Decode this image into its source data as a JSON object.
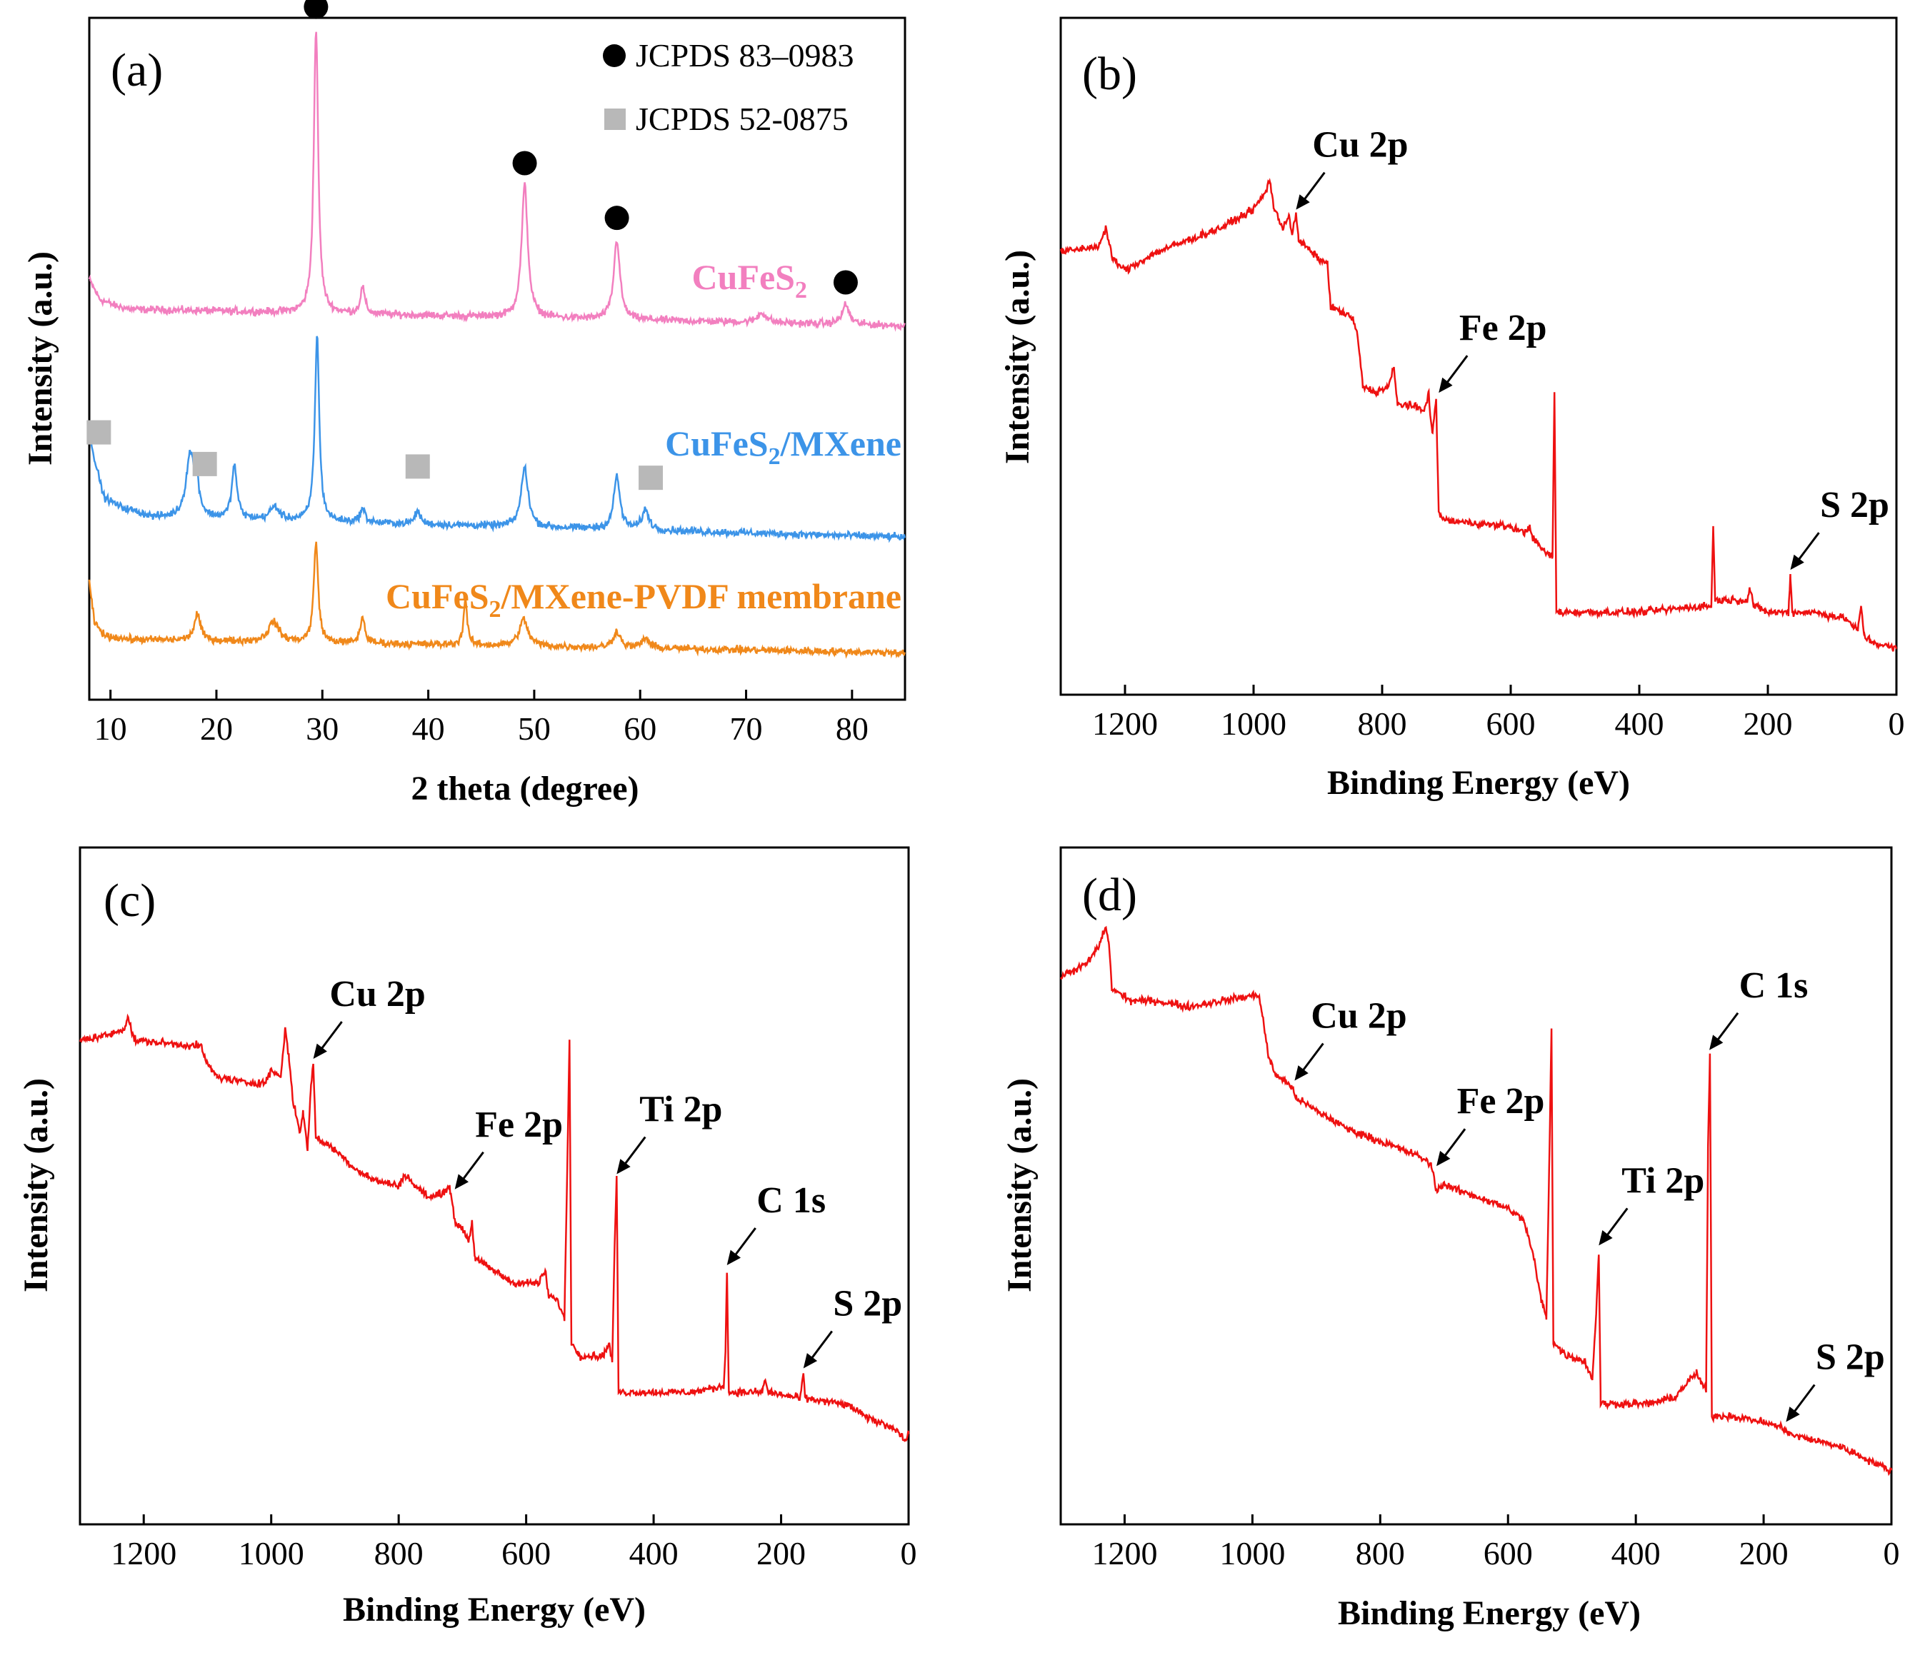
{
  "colors": {
    "cufes2": "#f27fbf",
    "cufes2_mxene": "#3c94e8",
    "membrane": "#f0881a",
    "xps": "#ee1111",
    "circle_marker": "#000000",
    "square_marker": "#b8b8b8"
  },
  "chart_data": [
    {
      "panel": "(a)",
      "type": "line",
      "xlabel": "2 theta (degree)",
      "ylabel": "Intensity (a.u.)",
      "xlim": [
        8,
        85
      ],
      "ylim": [
        0,
        100
      ],
      "xticks": [
        10,
        20,
        30,
        40,
        50,
        60,
        70,
        80
      ],
      "legend": [
        {
          "marker": "circle",
          "label": "JCPDS 83–0983"
        },
        {
          "marker": "square",
          "label": "JCPDS 52-0875"
        }
      ],
      "series": [
        {
          "name": "CuFeS",
          "subscript": "2",
          "suffix": "",
          "color_key": "cufes2",
          "baseline": 55,
          "start_points": [
            [
              8,
              62
            ],
            [
              9,
              59
            ],
            [
              10.5,
              58
            ],
            [
              12,
              57.5
            ]
          ],
          "peaks": [
            [
              29.4,
              43,
              0.25
            ],
            [
              33.8,
              4,
              0.25
            ],
            [
              49.1,
              20,
              0.35
            ],
            [
              57.8,
              12,
              0.35
            ],
            [
              71.5,
              1.5,
              0.5
            ],
            [
              79.4,
              3,
              0.4
            ]
          ],
          "circle_markers": [
            29.4,
            49.1,
            57.8,
            79.4
          ]
        },
        {
          "name": "CuFeS",
          "subscript": "2",
          "suffix": "/MXene",
          "color_key": "cufes2_mxene",
          "baseline": 23,
          "start_points": [
            [
              8,
              39
            ],
            [
              8.6,
              34
            ],
            [
              9.4,
              29
            ],
            [
              11,
              27.5
            ],
            [
              14,
              26
            ]
          ],
          "peaks": [
            [
              17.5,
              9,
              0.45
            ],
            [
              18.1,
              5,
              0.3
            ],
            [
              21.7,
              8,
              0.3
            ],
            [
              25.5,
              2,
              0.5
            ],
            [
              29.5,
              28,
              0.25
            ],
            [
              33.8,
              2,
              0.3
            ],
            [
              39,
              2,
              0.3
            ],
            [
              49.1,
              9,
              0.4
            ],
            [
              57.8,
              8,
              0.35
            ],
            [
              60.5,
              3,
              0.4
            ]
          ],
          "square_markers": [
            8.9,
            18.9,
            39,
            61
          ]
        },
        {
          "name": "CuFeS",
          "subscript": "2",
          "suffix": "/MXene-PVDF membrane",
          "color_key": "membrane",
          "baseline": 5.5,
          "start_points": [
            [
              8,
              16
            ],
            [
              8.5,
              10
            ],
            [
              9.5,
              8
            ],
            [
              12,
              7.5
            ]
          ],
          "peaks": [
            [
              18.2,
              4,
              0.35
            ],
            [
              25.4,
              3,
              0.6
            ],
            [
              29.4,
              15,
              0.25
            ],
            [
              33.8,
              4,
              0.25
            ],
            [
              43.5,
              7,
              0.2
            ],
            [
              49,
              4,
              0.5
            ],
            [
              57.8,
              2.5,
              0.4
            ],
            [
              60.5,
              1.5,
              0.4
            ]
          ]
        }
      ]
    },
    {
      "panel": "(b)",
      "type": "line",
      "xlabel": "Binding Energy (eV)",
      "ylabel": "Intensity (a.u.)",
      "xlim": [
        1300,
        0
      ],
      "ylim": [
        0,
        100
      ],
      "xticks": [
        1200,
        1000,
        800,
        600,
        400,
        200,
        0
      ],
      "points": [
        [
          1300,
          71
        ],
        [
          1240,
          72
        ],
        [
          1230,
          75
        ],
        [
          1220,
          70
        ],
        [
          1200,
          68
        ],
        [
          1150,
          71
        ],
        [
          1100,
          73
        ],
        [
          1050,
          75
        ],
        [
          1000,
          78
        ],
        [
          980,
          81
        ],
        [
          975,
          83
        ],
        [
          968,
          78
        ],
        [
          955,
          75
        ],
        [
          945,
          77
        ],
        [
          940,
          74
        ],
        [
          934,
          77
        ],
        [
          930,
          73
        ],
        [
          910,
          71
        ],
        [
          900,
          70
        ],
        [
          885,
          69
        ],
        [
          880,
          62
        ],
        [
          860,
          61
        ],
        [
          845,
          60
        ],
        [
          838,
          57
        ],
        [
          830,
          49
        ],
        [
          810,
          48
        ],
        [
          790,
          49
        ],
        [
          782,
          52
        ],
        [
          776,
          46
        ],
        [
          760,
          46
        ],
        [
          735,
          45
        ],
        [
          728,
          48
        ],
        [
          722,
          41
        ],
        [
          716,
          47
        ],
        [
          712,
          28
        ],
        [
          700,
          27
        ],
        [
          650,
          26.5
        ],
        [
          600,
          26
        ],
        [
          580,
          25
        ],
        [
          570,
          26
        ],
        [
          565,
          24
        ],
        [
          548,
          22
        ],
        [
          535,
          21
        ],
        [
          532,
          48
        ],
        [
          529,
          12
        ],
        [
          500,
          12
        ],
        [
          400,
          12
        ],
        [
          300,
          13
        ],
        [
          288,
          13
        ],
        [
          285,
          26
        ],
        [
          282,
          14
        ],
        [
          250,
          14
        ],
        [
          232,
          14
        ],
        [
          228,
          16
        ],
        [
          222,
          13
        ],
        [
          200,
          12
        ],
        [
          168,
          12
        ],
        [
          165,
          18
        ],
        [
          162,
          12
        ],
        [
          130,
          12
        ],
        [
          80,
          11
        ],
        [
          60,
          9
        ],
        [
          55,
          13
        ],
        [
          50,
          8
        ],
        [
          35,
          7
        ],
        [
          0,
          6
        ]
      ],
      "annotations": [
        {
          "label": "Cu 2p",
          "x": 934
        },
        {
          "label": "Fe 2p",
          "x": 712
        },
        {
          "label": "S 2p",
          "x": 165
        }
      ]
    },
    {
      "panel": "(c)",
      "type": "line",
      "xlabel": "Binding Energy (eV)",
      "ylabel": "Intensity (a.u.)",
      "xlim": [
        1300,
        0
      ],
      "ylim": [
        0,
        100
      ],
      "xticks": [
        1200,
        1000,
        800,
        600,
        400,
        200,
        0
      ],
      "points": [
        [
          1300,
          78
        ],
        [
          1250,
          79
        ],
        [
          1230,
          80
        ],
        [
          1225,
          82
        ],
        [
          1215,
          78
        ],
        [
          1110,
          77
        ],
        [
          1100,
          74
        ],
        [
          1085,
          72
        ],
        [
          1040,
          71
        ],
        [
          1010,
          71
        ],
        [
          1000,
          73
        ],
        [
          985,
          72
        ],
        [
          978,
          80
        ],
        [
          972,
          75
        ],
        [
          966,
          68
        ],
        [
          955,
          63
        ],
        [
          950,
          66
        ],
        [
          943,
          60
        ],
        [
          938,
          70
        ],
        [
          934,
          74
        ],
        [
          930,
          62
        ],
        [
          900,
          60
        ],
        [
          870,
          57
        ],
        [
          840,
          55
        ],
        [
          800,
          54
        ],
        [
          790,
          56
        ],
        [
          775,
          54
        ],
        [
          750,
          52
        ],
        [
          730,
          53
        ],
        [
          720,
          54
        ],
        [
          712,
          48
        ],
        [
          700,
          47
        ],
        [
          690,
          45
        ],
        [
          685,
          48
        ],
        [
          680,
          42
        ],
        [
          650,
          40
        ],
        [
          620,
          38
        ],
        [
          580,
          38
        ],
        [
          570,
          40
        ],
        [
          565,
          36
        ],
        [
          550,
          35
        ],
        [
          540,
          32
        ],
        [
          535,
          60
        ],
        [
          532,
          78
        ],
        [
          529,
          28
        ],
        [
          515,
          26
        ],
        [
          480,
          26
        ],
        [
          470,
          28
        ],
        [
          465,
          25
        ],
        [
          461,
          45
        ],
        [
          458,
          55
        ],
        [
          455,
          20
        ],
        [
          400,
          20
        ],
        [
          340,
          20
        ],
        [
          290,
          21
        ],
        [
          287,
          28
        ],
        [
          285,
          40
        ],
        [
          282,
          20
        ],
        [
          230,
          20
        ],
        [
          225,
          22
        ],
        [
          220,
          20
        ],
        [
          170,
          19
        ],
        [
          165,
          23
        ],
        [
          162,
          19
        ],
        [
          100,
          18
        ],
        [
          80,
          17
        ],
        [
          70,
          16
        ],
        [
          45,
          15
        ],
        [
          20,
          14
        ],
        [
          5,
          12
        ],
        [
          0,
          13
        ]
      ],
      "annotations": [
        {
          "label": "Cu 2p",
          "x": 934
        },
        {
          "label": "Fe 2p",
          "x": 712
        },
        {
          "label": "Ti 2p",
          "x": 458
        },
        {
          "label": "C 1s",
          "x": 285
        },
        {
          "label": "S 2p",
          "x": 165
        }
      ]
    },
    {
      "panel": "(d)",
      "type": "line",
      "xlabel": "Binding Energy (eV)",
      "ylabel": "Intensity (a.u.)",
      "xlim": [
        1300,
        0
      ],
      "ylim": [
        0,
        100
      ],
      "xticks": [
        1200,
        1000,
        800,
        600,
        400,
        200,
        0
      ],
      "points": [
        [
          1300,
          88
        ],
        [
          1260,
          90
        ],
        [
          1240,
          93
        ],
        [
          1230,
          96
        ],
        [
          1225,
          94
        ],
        [
          1220,
          86
        ],
        [
          1190,
          84
        ],
        [
          1150,
          84
        ],
        [
          1100,
          83
        ],
        [
          1050,
          84
        ],
        [
          990,
          85
        ],
        [
          985,
          82
        ],
        [
          975,
          75
        ],
        [
          965,
          72
        ],
        [
          950,
          71
        ],
        [
          940,
          70
        ],
        [
          930,
          68
        ],
        [
          900,
          66
        ],
        [
          850,
          63
        ],
        [
          800,
          61
        ],
        [
          750,
          59
        ],
        [
          730,
          58
        ],
        [
          720,
          57
        ],
        [
          712,
          53
        ],
        [
          700,
          54
        ],
        [
          680,
          53
        ],
        [
          650,
          52
        ],
        [
          600,
          50
        ],
        [
          575,
          48
        ],
        [
          560,
          42
        ],
        [
          548,
          35
        ],
        [
          540,
          32
        ],
        [
          535,
          60
        ],
        [
          532,
          80
        ],
        [
          529,
          28
        ],
        [
          510,
          26
        ],
        [
          480,
          25
        ],
        [
          468,
          22
        ],
        [
          462,
          33
        ],
        [
          458,
          43
        ],
        [
          455,
          18
        ],
        [
          420,
          18
        ],
        [
          380,
          18
        ],
        [
          340,
          19
        ],
        [
          315,
          22
        ],
        [
          305,
          23
        ],
        [
          290,
          20
        ],
        [
          287,
          60
        ],
        [
          284,
          75
        ],
        [
          281,
          16
        ],
        [
          250,
          16
        ],
        [
          200,
          15
        ],
        [
          168,
          14
        ],
        [
          160,
          13
        ],
        [
          120,
          12
        ],
        [
          80,
          11
        ],
        [
          40,
          9
        ],
        [
          20,
          8
        ],
        [
          0,
          7
        ]
      ],
      "annotations": [
        {
          "label": "Cu 2p",
          "x": 934
        },
        {
          "label": "Fe 2p",
          "x": 712
        },
        {
          "label": "Ti 2p",
          "x": 458
        },
        {
          "label": "C 1s",
          "x": 285
        },
        {
          "label": "S 2p",
          "x": 165
        }
      ]
    }
  ]
}
